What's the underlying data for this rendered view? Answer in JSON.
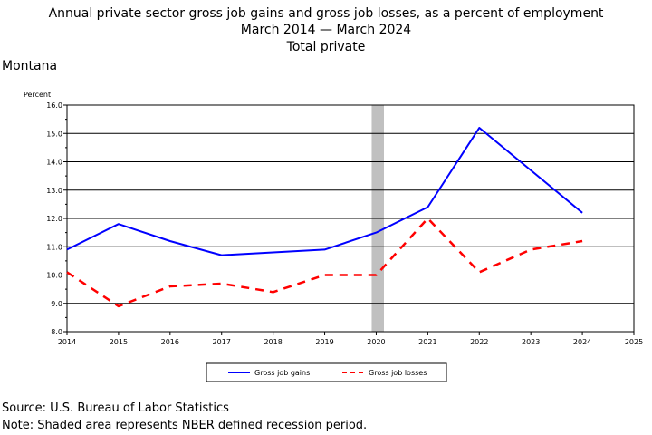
{
  "chart_data": {
    "type": "line",
    "title": "Annual private sector gross job gains and gross job losses, as a percent of employment",
    "subtitle": "March 2014 — March 2024",
    "subtitle2": "Total private",
    "region": "Montana",
    "ylabel": "Percent",
    "xlabel": "",
    "x": [
      2014,
      2015,
      2016,
      2017,
      2018,
      2019,
      2020,
      2021,
      2022,
      2023,
      2024
    ],
    "xlim": [
      2014,
      2025
    ],
    "xticks": [
      "2014",
      "2015",
      "2016",
      "2017",
      "2018",
      "2019",
      "2020",
      "2021",
      "2022",
      "2023",
      "2024",
      "2025"
    ],
    "ylim": [
      8.0,
      16.0
    ],
    "yticks": [
      "8.0",
      "9.0",
      "10.0",
      "11.0",
      "12.0",
      "13.0",
      "14.0",
      "15.0",
      "16.0"
    ],
    "grid": true,
    "legend_position": "bottom",
    "recession_shading": [
      2020,
      2020.15
    ],
    "series": [
      {
        "name": "Gross job gains",
        "color": "#0000ff",
        "dash": "solid",
        "values": [
          10.9,
          11.8,
          11.2,
          10.7,
          10.8,
          10.9,
          11.5,
          12.4,
          15.2,
          13.7,
          12.2
        ]
      },
      {
        "name": "Gross job losses",
        "color": "#ff0000",
        "dash": "dashed",
        "values": [
          10.1,
          8.9,
          9.6,
          9.7,
          9.4,
          10.0,
          10.0,
          12.0,
          10.1,
          10.9,
          11.2
        ]
      }
    ]
  },
  "footer": {
    "source": "Source: U.S. Bureau of Labor Statistics",
    "note": "Note: Shaded area represents NBER defined recession period."
  }
}
